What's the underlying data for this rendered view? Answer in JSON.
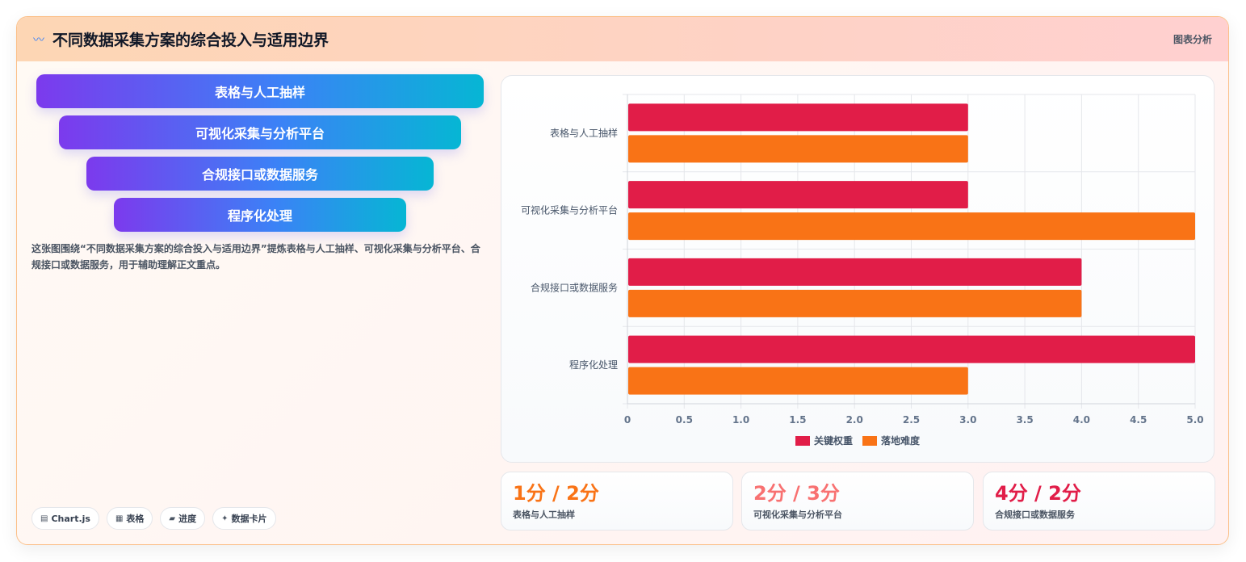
{
  "header": {
    "icon": "wave-icon",
    "title": "不同数据采集方案的综合投入与适用边界",
    "tag": "图表分析"
  },
  "funnel": [
    {
      "label": "表格与人工抽样"
    },
    {
      "label": "可视化采集与分析平台"
    },
    {
      "label": "合规接口或数据服务"
    },
    {
      "label": "程序化处理"
    }
  ],
  "description": "这张图围绕“不同数据采集方案的综合投入与适用边界”提炼表格与人工抽样、可视化采集与分析平台、合规接口或数据服务，用于辅助理解正文重点。",
  "chips": [
    {
      "icon": "chart-icon",
      "glyph": "▤",
      "label": "Chart.js"
    },
    {
      "icon": "table-icon",
      "glyph": "▦",
      "label": "表格"
    },
    {
      "icon": "progress-icon",
      "glyph": "▰",
      "label": "进度"
    },
    {
      "icon": "sparkle-icon",
      "glyph": "✦",
      "label": "数据卡片"
    }
  ],
  "chart_data": {
    "type": "bar",
    "orientation": "horizontal",
    "categories": [
      "表格与人工抽样",
      "可视化采集与分析平台",
      "合规接口或数据服务",
      "程序化处理"
    ],
    "series": [
      {
        "name": "关键权重",
        "color": "#e11d48",
        "values": [
          3,
          3,
          4,
          5
        ]
      },
      {
        "name": "落地难度",
        "color": "#f97316",
        "values": [
          3,
          5,
          4,
          3
        ]
      }
    ],
    "xlim": [
      0,
      5
    ],
    "xticks": [
      "0",
      "0.5",
      "1.0",
      "1.5",
      "2.0",
      "2.5",
      "3.0",
      "3.5",
      "4.0",
      "4.5",
      "5.0"
    ],
    "grid": true,
    "legend": "bottom"
  },
  "stats": [
    {
      "value": "1分 / 2分",
      "label": "表格与人工抽样",
      "color": "#f97316"
    },
    {
      "value": "2分 / 3分",
      "label": "可视化采集与分析平台",
      "color": "#f87171"
    },
    {
      "value": "4分 / 2分",
      "label": "合规接口或数据服务",
      "color": "#e11d48"
    }
  ]
}
